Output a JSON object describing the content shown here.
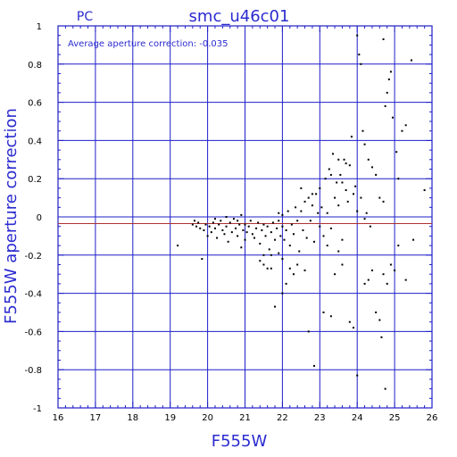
{
  "chart_data": {
    "type": "scatter",
    "title": "smc_u46c01",
    "subtitle": "PC",
    "annotation": "Average aperture correction: -0.035",
    "xlabel": "F555W",
    "ylabel": "F555W aperture correction",
    "xlim": [
      16,
      26
    ],
    "ylim": [
      -1,
      1
    ],
    "xticks": [
      "16",
      "17",
      "18",
      "19",
      "20",
      "21",
      "22",
      "23",
      "24",
      "25",
      "26"
    ],
    "yticks": [
      "-1",
      "-0.8",
      "-0.6",
      "-0.4",
      "-0.2",
      "0",
      "0.2",
      "0.4",
      "0.6",
      "0.8",
      "1"
    ],
    "grid": true,
    "reference_lines": [
      {
        "label": "zero",
        "value": 0
      },
      {
        "label": "average",
        "value": -0.035
      }
    ],
    "colors": {
      "axis": "#1f1fc8",
      "text": "#2b2bd0",
      "points": "#000000",
      "reference": "#b03030"
    },
    "points": [
      [
        19.2,
        -0.15
      ],
      [
        19.6,
        -0.04
      ],
      [
        19.65,
        -0.02
      ],
      [
        19.7,
        -0.05
      ],
      [
        19.75,
        -0.03
      ],
      [
        19.8,
        -0.06
      ],
      [
        19.85,
        -0.22
      ],
      [
        19.9,
        -0.07
      ],
      [
        19.95,
        -0.04
      ],
      [
        20.0,
        -0.1
      ],
      [
        20.05,
        -0.05
      ],
      [
        20.1,
        -0.08
      ],
      [
        20.15,
        -0.03
      ],
      [
        20.2,
        -0.06
      ],
      [
        20.25,
        -0.11
      ],
      [
        20.3,
        -0.04
      ],
      [
        20.35,
        -0.02
      ],
      [
        20.4,
        -0.07
      ],
      [
        20.45,
        -0.09
      ],
      [
        20.5,
        -0.05
      ],
      [
        20.55,
        -0.13
      ],
      [
        20.6,
        -0.03
      ],
      [
        20.65,
        -0.08
      ],
      [
        20.7,
        -0.01
      ],
      [
        20.75,
        -0.06
      ],
      [
        20.8,
        -0.1
      ],
      [
        20.85,
        -0.04
      ],
      [
        20.9,
        0.01
      ],
      [
        20.95,
        -0.07
      ],
      [
        21.0,
        -0.12
      ],
      [
        20.2,
        -0.01
      ],
      [
        20.5,
        0.0
      ],
      [
        20.8,
        -0.02
      ],
      [
        20.9,
        -0.16
      ],
      [
        21.0,
        -0.04
      ],
      [
        21.05,
        -0.08
      ],
      [
        21.1,
        -0.05
      ],
      [
        21.15,
        -0.02
      ],
      [
        21.2,
        -0.09
      ],
      [
        21.25,
        -0.11
      ],
      [
        21.3,
        -0.06
      ],
      [
        21.35,
        -0.03
      ],
      [
        21.4,
        -0.14
      ],
      [
        21.45,
        -0.07
      ],
      [
        21.5,
        -0.04
      ],
      [
        21.5,
        -0.2
      ],
      [
        21.55,
        -0.1
      ],
      [
        21.6,
        -0.05
      ],
      [
        21.65,
        -0.17
      ],
      [
        21.7,
        -0.08
      ],
      [
        21.75,
        -0.03
      ],
      [
        21.8,
        -0.12
      ],
      [
        21.85,
        -0.06
      ],
      [
        21.9,
        -0.02
      ],
      [
        21.95,
        -0.1
      ],
      [
        22.0,
        -0.05
      ],
      [
        21.7,
        -0.27
      ],
      [
        21.8,
        -0.47
      ],
      [
        21.9,
        -0.19
      ],
      [
        22.0,
        -0.22
      ],
      [
        21.4,
        -0.23
      ],
      [
        21.5,
        -0.25
      ],
      [
        21.6,
        -0.27
      ],
      [
        21.7,
        -0.2
      ],
      [
        21.9,
        0.02
      ],
      [
        22.0,
        0.01
      ],
      [
        22.05,
        -0.12
      ],
      [
        22.1,
        -0.07
      ],
      [
        22.15,
        0.03
      ],
      [
        22.2,
        -0.15
      ],
      [
        22.25,
        -0.04
      ],
      [
        22.3,
        -0.09
      ],
      [
        22.35,
        0.05
      ],
      [
        22.4,
        -0.02
      ],
      [
        22.45,
        -0.18
      ],
      [
        22.5,
        0.03
      ],
      [
        22.55,
        -0.07
      ],
      [
        22.6,
        0.08
      ],
      [
        22.65,
        -0.11
      ],
      [
        22.7,
        0.1
      ],
      [
        22.75,
        -0.02
      ],
      [
        22.8,
        0.06
      ],
      [
        22.85,
        -0.13
      ],
      [
        22.9,
        0.12
      ],
      [
        22.95,
        0.02
      ],
      [
        23.0,
        -0.05
      ],
      [
        22.3,
        -0.3
      ],
      [
        22.2,
        -0.27
      ],
      [
        22.1,
        -0.35
      ],
      [
        22.0,
        -0.4
      ],
      [
        22.4,
        -0.25
      ],
      [
        22.6,
        -0.28
      ],
      [
        22.7,
        -0.6
      ],
      [
        22.85,
        -0.78
      ],
      [
        22.5,
        0.15
      ],
      [
        22.8,
        0.12
      ],
      [
        23.0,
        0.15
      ],
      [
        23.05,
        0.05
      ],
      [
        23.1,
        -0.1
      ],
      [
        23.15,
        0.2
      ],
      [
        23.2,
        0.02
      ],
      [
        23.25,
        0.25
      ],
      [
        23.3,
        -0.06
      ],
      [
        23.35,
        0.33
      ],
      [
        23.4,
        0.1
      ],
      [
        23.45,
        0.18
      ],
      [
        23.5,
        0.06
      ],
      [
        23.55,
        0.22
      ],
      [
        23.6,
        -0.12
      ],
      [
        23.65,
        0.3
      ],
      [
        23.7,
        0.14
      ],
      [
        23.75,
        0.08
      ],
      [
        23.8,
        0.27
      ],
      [
        23.85,
        0.42
      ],
      [
        23.9,
        0.12
      ],
      [
        23.95,
        0.16
      ],
      [
        24.0,
        0.03
      ],
      [
        23.1,
        -0.5
      ],
      [
        23.2,
        -0.15
      ],
      [
        23.3,
        -0.52
      ],
      [
        23.4,
        -0.3
      ],
      [
        23.5,
        -0.18
      ],
      [
        23.6,
        -0.25
      ],
      [
        23.8,
        -0.55
      ],
      [
        23.9,
        -0.58
      ],
      [
        24.0,
        -0.83
      ],
      [
        23.3,
        0.22
      ],
      [
        23.5,
        0.3
      ],
      [
        23.6,
        0.18
      ],
      [
        23.7,
        0.28
      ],
      [
        24.0,
        0.95
      ],
      [
        24.05,
        0.85
      ],
      [
        24.1,
        0.8
      ],
      [
        24.15,
        0.45
      ],
      [
        24.2,
        0.38
      ],
      [
        24.3,
        0.3
      ],
      [
        24.4,
        0.26
      ],
      [
        24.5,
        0.22
      ],
      [
        24.6,
        0.1
      ],
      [
        24.7,
        0.08
      ],
      [
        24.75,
        0.58
      ],
      [
        24.8,
        0.65
      ],
      [
        24.85,
        0.72
      ],
      [
        24.9,
        0.76
      ],
      [
        24.95,
        0.52
      ],
      [
        25.05,
        0.34
      ],
      [
        25.1,
        0.2
      ],
      [
        25.2,
        0.45
      ],
      [
        25.3,
        0.48
      ],
      [
        25.45,
        0.82
      ],
      [
        24.7,
        0.93
      ],
      [
        24.1,
        0.1
      ],
      [
        24.2,
        -0.35
      ],
      [
        24.3,
        -0.33
      ],
      [
        24.4,
        -0.28
      ],
      [
        24.5,
        -0.5
      ],
      [
        24.6,
        -0.54
      ],
      [
        24.65,
        -0.63
      ],
      [
        24.7,
        -0.3
      ],
      [
        24.75,
        -0.9
      ],
      [
        24.8,
        -0.35
      ],
      [
        24.9,
        -0.25
      ],
      [
        25.0,
        -0.28
      ],
      [
        25.1,
        -0.15
      ],
      [
        25.3,
        -0.33
      ],
      [
        25.5,
        -0.12
      ],
      [
        25.8,
        0.14
      ],
      [
        24.2,
        -0.01
      ],
      [
        24.25,
        0.02
      ],
      [
        24.35,
        -0.05
      ]
    ]
  }
}
